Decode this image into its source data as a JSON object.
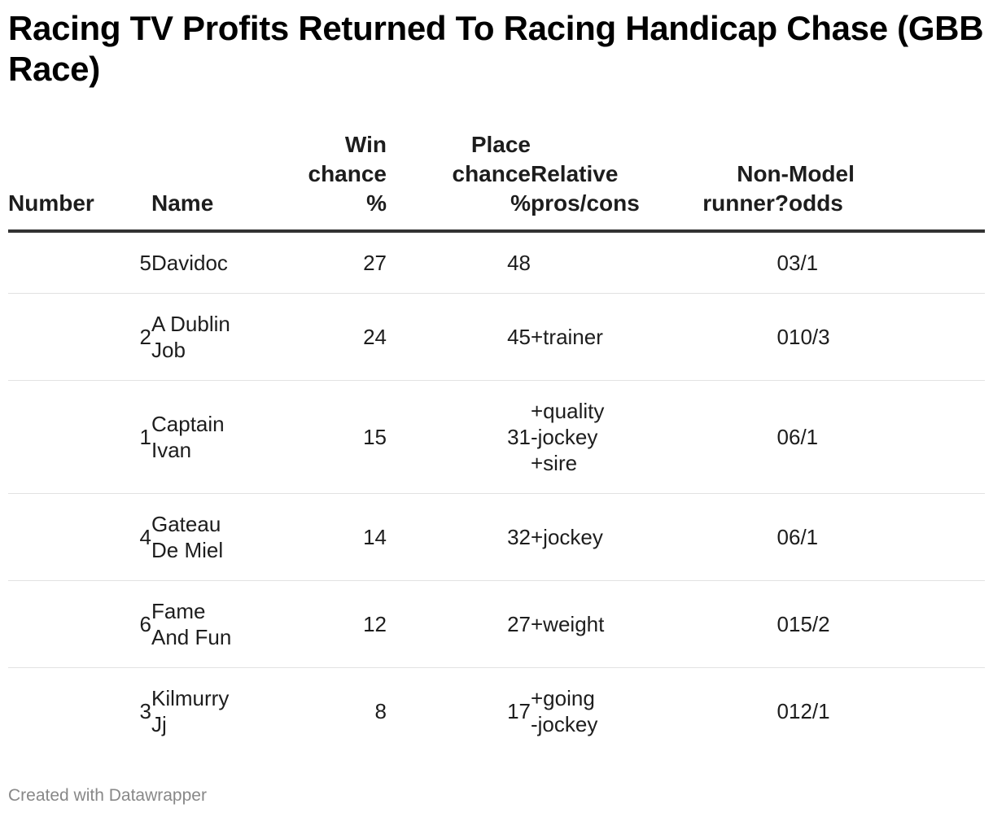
{
  "title": "Racing TV Profits Returned To Racing Handicap Chase (GBB Race)",
  "columns": {
    "number": "Number",
    "name": "Name",
    "win": "Win\nchance\n%",
    "place": "Place\nchance\n%",
    "relative": "Relative\npros/cons",
    "nonrunner": "Non-\nrunner?",
    "odds": "Model\nodds"
  },
  "rows": [
    {
      "number": "5",
      "name": "Davidoc",
      "win": "27",
      "place": "48",
      "relative": "",
      "nonrunner": "0",
      "odds": "3/1"
    },
    {
      "number": "2",
      "name": "A Dublin\nJob",
      "win": "24",
      "place": "45",
      "relative": "+trainer",
      "nonrunner": "0",
      "odds": "10/3"
    },
    {
      "number": "1",
      "name": "Captain\nIvan",
      "win": "15",
      "place": "31",
      "relative": "+quality\n-jockey\n+sire",
      "nonrunner": "0",
      "odds": "6/1"
    },
    {
      "number": "4",
      "name": "Gateau\nDe Miel",
      "win": "14",
      "place": "32",
      "relative": "+jockey",
      "nonrunner": "0",
      "odds": "6/1"
    },
    {
      "number": "6",
      "name": "Fame\nAnd Fun",
      "win": "12",
      "place": "27",
      "relative": "+weight",
      "nonrunner": "0",
      "odds": "15/2"
    },
    {
      "number": "3",
      "name": "Kilmurry\nJj",
      "win": "8",
      "place": "17",
      "relative": "+going\n-jockey",
      "nonrunner": "0",
      "odds": "12/1"
    }
  ],
  "footer": "Created with Datawrapper"
}
